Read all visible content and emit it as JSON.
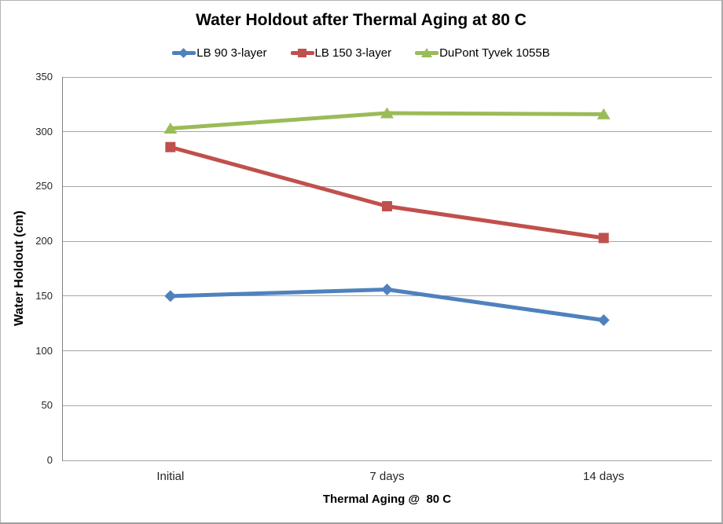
{
  "chart_data": {
    "type": "line",
    "title": "Water Holdout after Thermal Aging at 80 C",
    "xlabel": "Thermal Aging @  80 C",
    "ylabel": "Water Holdout (cm)",
    "categories": [
      "Initial",
      "7 days",
      "14 days"
    ],
    "series": [
      {
        "name": "LB 90 3-layer",
        "color": "#4F81BD",
        "marker": "diamond",
        "values": [
          150,
          156,
          128
        ]
      },
      {
        "name": "LB 150 3-layer",
        "color": "#C0504D",
        "marker": "square",
        "values": [
          286,
          232,
          203
        ]
      },
      {
        "name": "DuPont Tyvek 1055B",
        "color": "#9BBB59",
        "marker": "triangle",
        "values": [
          303,
          317,
          316
        ]
      }
    ],
    "ylim": [
      0,
      350
    ],
    "ytick_step": 50,
    "grid": true,
    "legend_position": "top"
  },
  "colors": {
    "gridline": "#A6A6A6",
    "axis_line": "#808080",
    "text": "#000000",
    "border": "#ABABAB",
    "background": "#FFFFFF"
  }
}
